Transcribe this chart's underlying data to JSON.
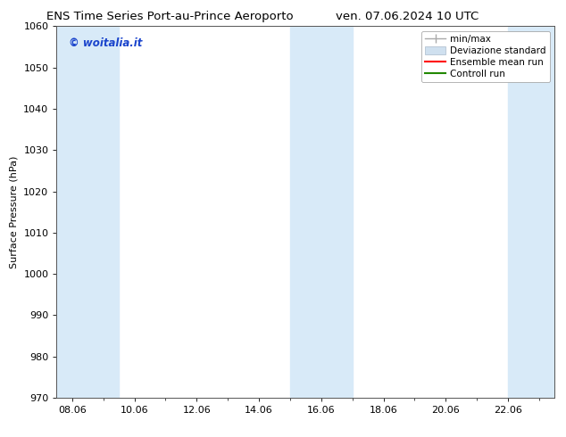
{
  "title_left": "ENS Time Series Port-au-Prince Aeroporto",
  "title_right": "ven. 07.06.2024 10 UTC",
  "ylabel": "Surface Pressure (hPa)",
  "ylim": [
    970,
    1060
  ],
  "yticks": [
    970,
    980,
    990,
    1000,
    1010,
    1020,
    1030,
    1040,
    1050,
    1060
  ],
  "xlim": [
    7.5,
    23.5
  ],
  "xtick_positions": [
    8,
    10,
    12,
    14,
    16,
    18,
    20,
    22
  ],
  "xtick_labels": [
    "08.06",
    "10.06",
    "12.06",
    "14.06",
    "16.06",
    "18.06",
    "20.06",
    "22.06"
  ],
  "watermark": "© woitalia.it",
  "watermark_color": "#1a44cc",
  "bg_color": "#ffffff",
  "plot_bg_color": "#ffffff",
  "shaded_bands": [
    {
      "xstart": 7.5,
      "xend": 9.5,
      "color": "#d8eaf8"
    },
    {
      "xstart": 15.0,
      "xend": 17.0,
      "color": "#d8eaf8"
    },
    {
      "xstart": 22.0,
      "xend": 23.5,
      "color": "#d8eaf8"
    }
  ],
  "legend_items": [
    {
      "label": "min/max",
      "color": "#aaaaaa",
      "lw": 1.0
    },
    {
      "label": "Deviazione standard",
      "facecolor": "#cfe0ef",
      "edgecolor": "#aabbcc"
    },
    {
      "label": "Ensemble mean run",
      "color": "#ff0000",
      "lw": 1.5
    },
    {
      "label": "Controll run",
      "color": "#228800",
      "lw": 1.5
    }
  ],
  "font_size_title": 9.5,
  "font_size_ylabel": 8,
  "font_size_ticks": 8,
  "font_size_legend": 7.5,
  "font_size_watermark": 8.5
}
